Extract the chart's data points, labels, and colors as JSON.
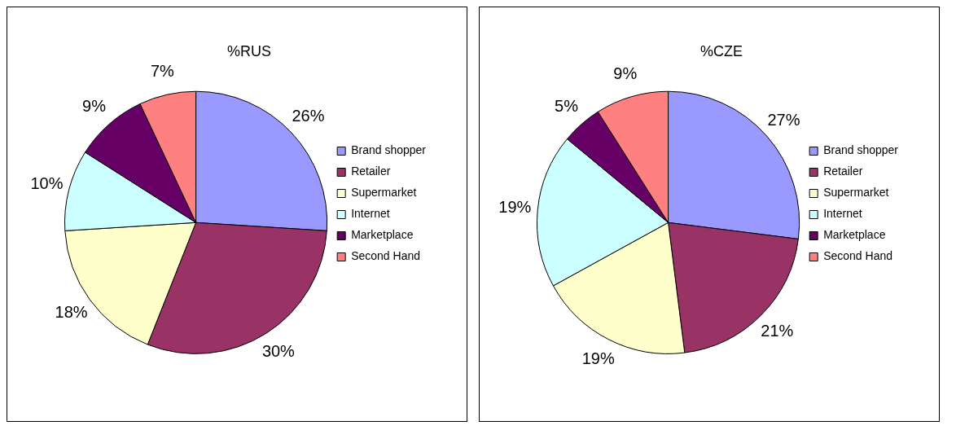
{
  "chart_data": [
    {
      "type": "pie",
      "title": "%RUS",
      "categories": [
        "Brand shopper",
        "Retailer",
        "Supermarket",
        "Internet",
        "Marketplace",
        "Second Hand"
      ],
      "values": [
        26,
        30,
        18,
        10,
        9,
        7
      ],
      "value_labels": [
        "26%",
        "30%",
        "18%",
        "10%",
        "9%",
        "7%"
      ],
      "colors": [
        "#9999ff",
        "#993366",
        "#ffffcc",
        "#ccffff",
        "#660066",
        "#ff8080"
      ],
      "legend": "right"
    },
    {
      "type": "pie",
      "title": "%CZE",
      "categories": [
        "Brand shopper",
        "Retailer",
        "Supermarket",
        "Internet",
        "Marketplace",
        "Second Hand"
      ],
      "values": [
        27,
        21,
        19,
        19,
        5,
        9
      ],
      "value_labels": [
        "27%",
        "21%",
        "19%",
        "19%",
        "5%",
        "9%"
      ],
      "colors": [
        "#9999ff",
        "#993366",
        "#ffffcc",
        "#ccffff",
        "#660066",
        "#ff8080"
      ],
      "legend": "right"
    }
  ]
}
